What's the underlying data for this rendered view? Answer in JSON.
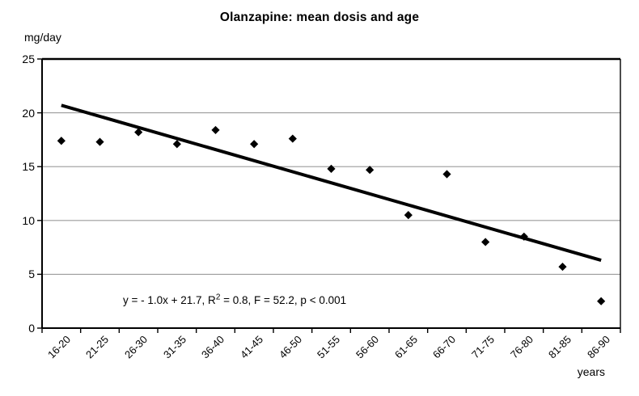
{
  "chart_data": {
    "type": "scatter",
    "title": "Olanzapine: mean dosis and age",
    "ylabel": "mg/day",
    "xlabel": "years",
    "categories": [
      "16-20",
      "21-25",
      "26-30",
      "31-35",
      "36-40",
      "41-45",
      "46-50",
      "51-55",
      "56-60",
      "61-65",
      "66-70",
      "71-75",
      "76-80",
      "81-85",
      "86-90"
    ],
    "values": [
      17.4,
      17.3,
      18.2,
      17.1,
      18.4,
      17.1,
      17.6,
      14.8,
      14.7,
      10.5,
      14.3,
      8.0,
      8.5,
      5.7,
      2.5
    ],
    "ylim": [
      0,
      25
    ],
    "yticks": [
      0,
      5,
      10,
      15,
      20,
      25
    ],
    "grid": true,
    "legend": "none",
    "marker": "diamond",
    "trendline": {
      "start_value": 20.7,
      "end_value": 6.3,
      "equation_full": "y = - 1.0x + 21.7, R² = 0.8, F = 52.2, p < 0.001"
    },
    "annotation": {
      "prefix": "y = - 1.0x + 21.7, R",
      "sup": "2",
      "suffix": " = 0.8, F = 52.2, p < 0.001"
    },
    "colors": {
      "marker": "#000000",
      "trend": "#000000",
      "grid": "#9c9c9c",
      "axis": "#000000",
      "background": "#ffffff"
    }
  }
}
